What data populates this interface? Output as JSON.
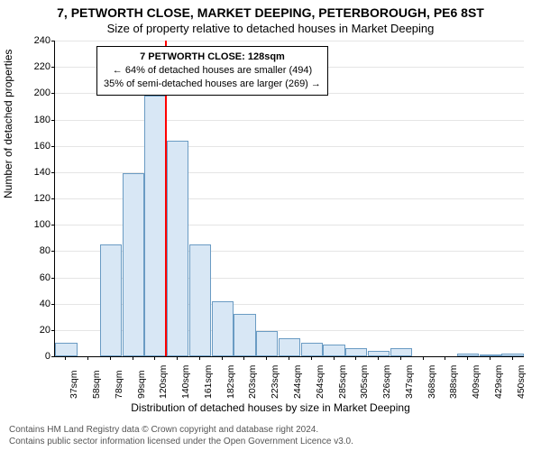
{
  "title": "7, PETWORTH CLOSE, MARKET DEEPING, PETERBOROUGH, PE6 8ST",
  "subtitle": "Size of property relative to detached houses in Market Deeping",
  "chart": {
    "type": "histogram",
    "ylabel": "Number of detached properties",
    "xlabel": "Distribution of detached houses by size in Market Deeping",
    "background_color": "#ffffff",
    "grid_color": "#e5e5e5",
    "axis_color": "#000000",
    "bar_fill": "#d8e7f5",
    "bar_border": "#6a9bc3",
    "marker_color": "#ff0000",
    "ylim": [
      0,
      240
    ],
    "ytick_step": 20,
    "xtick_labels": [
      "37sqm",
      "58sqm",
      "78sqm",
      "99sqm",
      "120sqm",
      "140sqm",
      "161sqm",
      "182sqm",
      "203sqm",
      "223sqm",
      "244sqm",
      "264sqm",
      "285sqm",
      "305sqm",
      "326sqm",
      "347sqm",
      "368sqm",
      "388sqm",
      "409sqm",
      "429sqm",
      "450sqm"
    ],
    "values": [
      10,
      0,
      85,
      139,
      198,
      164,
      85,
      42,
      32,
      19,
      14,
      10,
      9,
      6,
      4,
      6,
      0,
      0,
      2,
      1,
      2
    ],
    "marker_value_x": 128,
    "x_min": 37,
    "x_max": 450,
    "label_fontsize": 12,
    "tick_fontsize": 11,
    "title_fontsize": 14
  },
  "callout": {
    "line1": "7 PETWORTH CLOSE: 128sqm",
    "line2": "← 64% of detached houses are smaller (494)",
    "line3": "35% of semi-detached houses are larger (269) →"
  },
  "footnote": {
    "line1": "Contains HM Land Registry data © Crown copyright and database right 2024.",
    "line2": "Contains public sector information licensed under the Open Government Licence v3.0."
  }
}
